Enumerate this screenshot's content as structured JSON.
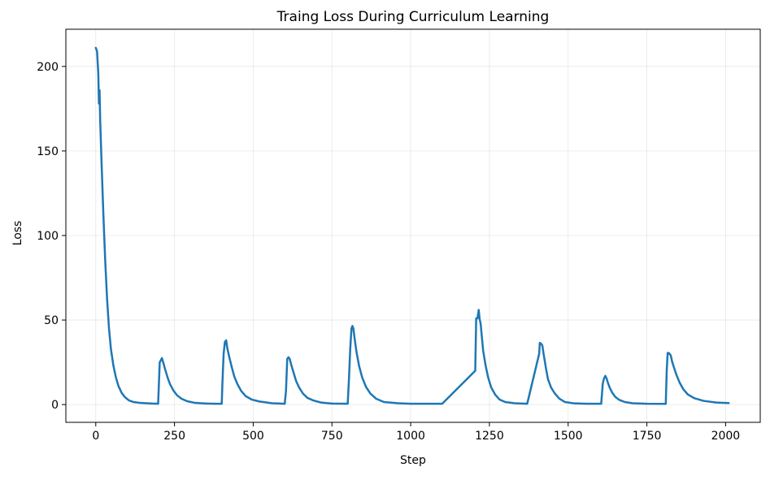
{
  "chart_data": {
    "type": "line",
    "title": "Traing Loss During Curriculum Learning",
    "xlabel": "Step",
    "ylabel": "Loss",
    "xlim": [
      -95,
      2110
    ],
    "ylim": [
      -10.5,
      222
    ],
    "xticks": [
      0,
      250,
      500,
      750,
      1000,
      1250,
      1500,
      1750,
      2000
    ],
    "yticks": [
      0,
      50,
      100,
      150,
      200
    ],
    "grid": true,
    "legend": "none",
    "series": [
      {
        "color": "#1f77b4",
        "x": [
          0,
          4,
          8,
          10,
          12,
          14,
          18,
          24,
          30,
          36,
          42,
          48,
          56,
          64,
          72,
          82,
          92,
          105,
          120,
          140,
          160,
          180,
          198,
          200,
          203,
          206,
          210,
          214,
          220,
          228,
          236,
          246,
          258,
          272,
          290,
          315,
          350,
          380,
          400,
          402,
          406,
          410,
          414,
          418,
          424,
          432,
          440,
          450,
          462,
          476,
          495,
          520,
          560,
          600,
          604,
          608,
          612,
          616,
          620,
          628,
          636,
          646,
          658,
          672,
          690,
          715,
          750,
          800,
          804,
          808,
          812,
          815,
          818,
          822,
          828,
          836,
          846,
          858,
          872,
          890,
          915,
          960,
          1000,
          1100,
          1205,
          1208,
          1212,
          1216,
          1219,
          1222,
          1226,
          1230,
          1238,
          1246,
          1256,
          1268,
          1282,
          1300,
          1330,
          1370,
          1408,
          1410,
          1414,
          1418,
          1422,
          1426,
          1430,
          1436,
          1446,
          1458,
          1472,
          1490,
          1520,
          1560,
          1605,
          1610,
          1614,
          1618,
          1622,
          1626,
          1632,
          1640,
          1650,
          1662,
          1680,
          1705,
          1750,
          1810,
          1813,
          1816,
          1820,
          1826,
          1830,
          1836,
          1844,
          1854,
          1866,
          1880,
          1900,
          1930,
          1970,
          2010
        ],
        "y": [
          211,
          209,
          196,
          178,
          186,
          168,
          145,
          113,
          85,
          62,
          45,
          33,
          23,
          16,
          11,
          7,
          4.5,
          2.5,
          1.5,
          1,
          0.8,
          0.6,
          0.5,
          10,
          25,
          26,
          27.5,
          25,
          21,
          16,
          12,
          8.5,
          5.5,
          3.5,
          2,
          1,
          0.6,
          0.5,
          0.5,
          12,
          30,
          37,
          38,
          33,
          28,
          22,
          16.5,
          12,
          8,
          5,
          3,
          1.8,
          0.8,
          0.5,
          8,
          27,
          28,
          27,
          24,
          19,
          14,
          10,
          6.5,
          4,
          2.5,
          1.2,
          0.6,
          0.5,
          15,
          33,
          45,
          46.5,
          45,
          39,
          31,
          23,
          16,
          10.5,
          6.5,
          3.5,
          1.5,
          0.8,
          0.5,
          0.5,
          20,
          51,
          51,
          56,
          50.5,
          48,
          40,
          32,
          23,
          16,
          10,
          6,
          3,
          1.5,
          0.8,
          0.5,
          30,
          36.5,
          36,
          35,
          30,
          25.5,
          21,
          15,
          10,
          6.5,
          3.5,
          1.5,
          0.7,
          0.5,
          0.5,
          12.5,
          15.5,
          17,
          15.5,
          13,
          10,
          7,
          4.5,
          2.8,
          1.5,
          0.8,
          0.5,
          0.4,
          20,
          30.5,
          30.5,
          29,
          25.5,
          22,
          17.5,
          13,
          9,
          6,
          3.8,
          2.2,
          1.2,
          0.9
        ]
      }
    ]
  }
}
